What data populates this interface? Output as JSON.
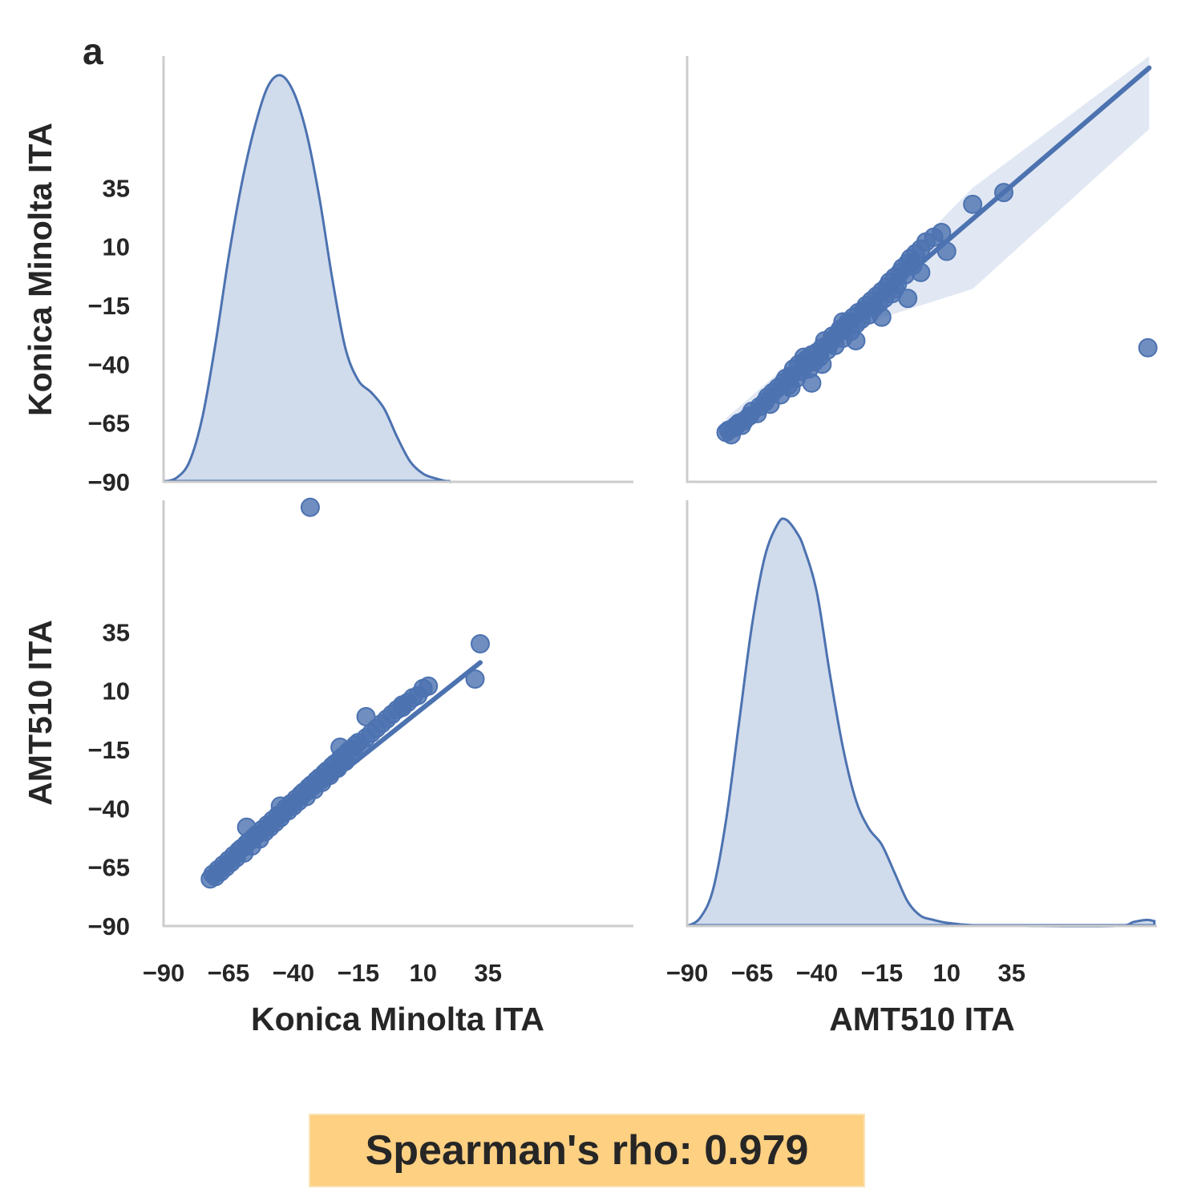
{
  "panel_letter": "a",
  "annotation": "Spearman's rho: 0.979",
  "colors": {
    "series": "#4c72b0",
    "kde_fill": "#d0dbec",
    "ci_band": "#e1e8f3",
    "spine": "#cccccc",
    "text": "#262626",
    "annotation_bg": "#fdd082"
  },
  "chart_data": {
    "type": "pairplot",
    "variables": [
      "Konica Minolta ITA",
      "AMT510 ITA"
    ],
    "ticks": [
      -90,
      -65,
      -40,
      -15,
      10,
      35
    ],
    "tick_labels": [
      "−90",
      "−65",
      "−40",
      "−15",
      "10",
      "35"
    ],
    "axis_range": [
      -90,
      91
    ],
    "grid": false,
    "correlation": {
      "method": "Spearman",
      "rho": 0.979
    },
    "panels": [
      {
        "id": "kde-konica",
        "type": "kde",
        "variable": "Konica Minolta ITA",
        "curve": [
          [
            -90,
            0
          ],
          [
            -85,
            0.01
          ],
          [
            -80,
            0.05
          ],
          [
            -75,
            0.16
          ],
          [
            -70,
            0.34
          ],
          [
            -65,
            0.55
          ],
          [
            -60,
            0.73
          ],
          [
            -55,
            0.87
          ],
          [
            -50,
            0.97
          ],
          [
            -45,
            1.0
          ],
          [
            -40,
            0.96
          ],
          [
            -35,
            0.86
          ],
          [
            -30,
            0.7
          ],
          [
            -25,
            0.5
          ],
          [
            -20,
            0.33
          ],
          [
            -15,
            0.25
          ],
          [
            -10,
            0.22
          ],
          [
            -5,
            0.18
          ],
          [
            0,
            0.11
          ],
          [
            5,
            0.05
          ],
          [
            10,
            0.02
          ],
          [
            15,
            0.008
          ],
          [
            20,
            0.0
          ]
        ]
      },
      {
        "id": "scatter-amt-vs-konica",
        "type": "scatter_regression",
        "x_variable": "AMT510 ITA",
        "y_variable": "Konica Minolta ITA",
        "regression_line": [
          [
            -75,
            -68
          ],
          [
            88,
            86
          ]
        ],
        "ci_band_upper": [
          [
            -75,
            -63
          ],
          [
            -20,
            -10
          ],
          [
            20,
            35
          ],
          [
            88,
            91
          ]
        ],
        "ci_band_lower": [
          [
            -75,
            -70
          ],
          [
            -20,
            -22
          ],
          [
            20,
            -8
          ],
          [
            88,
            60
          ]
        ],
        "points": [
          [
            -75,
            -69
          ],
          [
            -74,
            -68
          ],
          [
            -73,
            -70
          ],
          [
            -72,
            -67
          ],
          [
            -71,
            -66
          ],
          [
            -70,
            -65
          ],
          [
            -69,
            -66
          ],
          [
            -68,
            -64
          ],
          [
            -66,
            -62
          ],
          [
            -65,
            -60
          ],
          [
            -63,
            -61
          ],
          [
            -62,
            -58
          ],
          [
            -60,
            -56
          ],
          [
            -59,
            -54
          ],
          [
            -58,
            -57
          ],
          [
            -57,
            -52
          ],
          [
            -55,
            -50
          ],
          [
            -54,
            -53
          ],
          [
            -53,
            -48
          ],
          [
            -52,
            -46
          ],
          [
            -51,
            -49
          ],
          [
            -50,
            -45
          ],
          [
            -49,
            -42
          ],
          [
            -48,
            -46
          ],
          [
            -47,
            -40
          ],
          [
            -46,
            -43
          ],
          [
            -45,
            -41
          ],
          [
            -44,
            -38
          ],
          [
            -43,
            -42
          ],
          [
            -42,
            -36
          ],
          [
            -41,
            -39
          ],
          [
            -40,
            -35
          ],
          [
            -39,
            -37
          ],
          [
            -38,
            -33
          ],
          [
            -37,
            -30
          ],
          [
            -36,
            -34
          ],
          [
            -35,
            -31
          ],
          [
            -34,
            -28
          ],
          [
            -33,
            -32
          ],
          [
            -32,
            -27
          ],
          [
            -31,
            -25
          ],
          [
            -30,
            -29
          ],
          [
            -29,
            -24
          ],
          [
            -28,
            -22
          ],
          [
            -27,
            -26
          ],
          [
            -26,
            -20
          ],
          [
            -25,
            -23
          ],
          [
            -24,
            -18
          ],
          [
            -23,
            -21
          ],
          [
            -22,
            -17
          ],
          [
            -21,
            -15
          ],
          [
            -20,
            -19
          ],
          [
            -19,
            -13
          ],
          [
            -18,
            -16
          ],
          [
            -17,
            -11
          ],
          [
            -16,
            -14
          ],
          [
            -15,
            -9
          ],
          [
            -14,
            -12
          ],
          [
            -13,
            -7
          ],
          [
            -12,
            -5
          ],
          [
            -11,
            -10
          ],
          [
            -10,
            -3
          ],
          [
            -9,
            -6
          ],
          [
            -8,
            -1
          ],
          [
            -7,
            1
          ],
          [
            -6,
            -2
          ],
          [
            -5,
            3
          ],
          [
            -4,
            5
          ],
          [
            -3,
            2
          ],
          [
            -2,
            7
          ],
          [
            0,
            9
          ],
          [
            2,
            12
          ],
          [
            -50,
            -50
          ],
          [
            -45,
            -37
          ],
          [
            -42,
            -48
          ],
          [
            -38,
            -40
          ],
          [
            -30,
            -22
          ],
          [
            -25,
            -30
          ],
          [
            -15,
            -20
          ],
          [
            -10,
            -8
          ],
          [
            -5,
            -12
          ],
          [
            0,
            -1
          ],
          [
            5,
            14
          ],
          [
            8,
            16
          ],
          [
            10,
            8
          ],
          [
            20,
            28
          ],
          [
            32,
            33
          ],
          [
            87.5,
            -33
          ]
        ]
      },
      {
        "id": "scatter-konica-vs-amt",
        "type": "scatter_regression",
        "x_variable": "Konica Minolta ITA",
        "y_variable": "AMT510 ITA",
        "regression_line": [
          [
            -72,
            -69
          ],
          [
            32,
            22
          ]
        ],
        "points": [
          [
            -72,
            -70
          ],
          [
            -71,
            -68
          ],
          [
            -70,
            -69
          ],
          [
            -69,
            -66
          ],
          [
            -68,
            -67
          ],
          [
            -67,
            -64
          ],
          [
            -66,
            -65
          ],
          [
            -65,
            -62
          ],
          [
            -64,
            -63
          ],
          [
            -63,
            -60
          ],
          [
            -62,
            -61
          ],
          [
            -61,
            -58
          ],
          [
            -60,
            -57
          ],
          [
            -59,
            -59
          ],
          [
            -58,
            -55
          ],
          [
            -57,
            -54
          ],
          [
            -56,
            -56
          ],
          [
            -55,
            -52
          ],
          [
            -54,
            -51
          ],
          [
            -53,
            -53
          ],
          [
            -52,
            -49
          ],
          [
            -51,
            -50
          ],
          [
            -50,
            -47
          ],
          [
            -49,
            -48
          ],
          [
            -48,
            -45
          ],
          [
            -47,
            -46
          ],
          [
            -46,
            -43
          ],
          [
            -45,
            -44
          ],
          [
            -44,
            -42
          ],
          [
            -43,
            -40
          ],
          [
            -42,
            -41
          ],
          [
            -41,
            -38
          ],
          [
            -40,
            -39
          ],
          [
            -39,
            -36
          ],
          [
            -38,
            -37
          ],
          [
            -37,
            -34
          ],
          [
            -36,
            -33
          ],
          [
            -35,
            -35
          ],
          [
            -34,
            -31
          ],
          [
            -33,
            -30
          ],
          [
            -32,
            -32
          ],
          [
            -31,
            -28
          ],
          [
            -30,
            -27
          ],
          [
            -29,
            -29
          ],
          [
            -28,
            -25
          ],
          [
            -27,
            -24
          ],
          [
            -26,
            -26
          ],
          [
            -25,
            -22
          ],
          [
            -24,
            -21
          ],
          [
            -23,
            -23
          ],
          [
            -22,
            -19
          ],
          [
            -21,
            -18
          ],
          [
            -20,
            -20
          ],
          [
            -19,
            -16
          ],
          [
            -18,
            -15
          ],
          [
            -17,
            -17
          ],
          [
            -16,
            -13
          ],
          [
            -15,
            -12
          ],
          [
            -14,
            -14
          ],
          [
            -12,
            -10
          ],
          [
            -10,
            -8
          ],
          [
            -8,
            -6
          ],
          [
            -6,
            -4
          ],
          [
            -4,
            -2
          ],
          [
            -2,
            0
          ],
          [
            0,
            2
          ],
          [
            2,
            3
          ],
          [
            4,
            5
          ],
          [
            6,
            7
          ],
          [
            8,
            8
          ],
          [
            10,
            11
          ],
          [
            12,
            12
          ],
          [
            -58,
            -48
          ],
          [
            -45,
            -39
          ],
          [
            -22,
            -14
          ],
          [
            -12,
            -1
          ],
          [
            2,
            4
          ],
          [
            30,
            15
          ],
          [
            32,
            30
          ],
          [
            -33.5,
            88
          ]
        ]
      },
      {
        "id": "kde-amt",
        "type": "kde",
        "variable": "AMT510 ITA",
        "curve": [
          [
            -90,
            0
          ],
          [
            -85,
            0.02
          ],
          [
            -80,
            0.09
          ],
          [
            -75,
            0.26
          ],
          [
            -70,
            0.5
          ],
          [
            -65,
            0.74
          ],
          [
            -60,
            0.91
          ],
          [
            -55,
            0.99
          ],
          [
            -52,
            1.0
          ],
          [
            -48,
            0.97
          ],
          [
            -45,
            0.93
          ],
          [
            -40,
            0.82
          ],
          [
            -35,
            0.62
          ],
          [
            -30,
            0.44
          ],
          [
            -25,
            0.31
          ],
          [
            -20,
            0.24
          ],
          [
            -15,
            0.2
          ],
          [
            -10,
            0.13
          ],
          [
            -5,
            0.06
          ],
          [
            0,
            0.025
          ],
          [
            5,
            0.015
          ],
          [
            10,
            0.008
          ],
          [
            20,
            0.002
          ],
          [
            40,
            0.0
          ],
          [
            75,
            0.0
          ],
          [
            82,
            0.01
          ],
          [
            87,
            0.015
          ],
          [
            90,
            0.012
          ]
        ]
      }
    ]
  }
}
